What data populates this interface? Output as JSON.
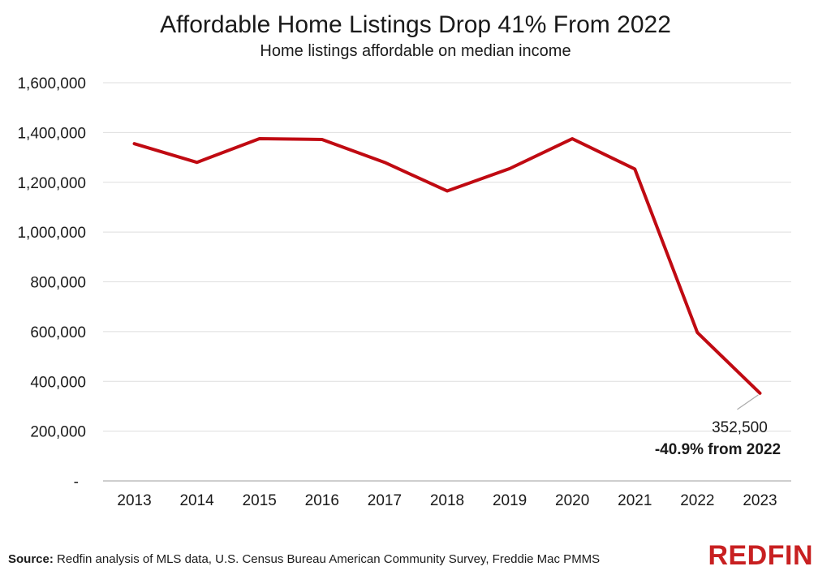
{
  "header": {
    "title": "Affordable Home Listings Drop 41% From 2022",
    "subtitle": "Home listings affordable on median income"
  },
  "annotation": {
    "value_label": "352,500",
    "change_label": "-40.9% from 2022"
  },
  "footer": {
    "source_label": "Source:",
    "source_text": "Redfin analysis of MLS data, U.S. Census Bureau American Community Survey, Freddie Mac PMMS"
  },
  "brand": {
    "logo_text": "REDFIN",
    "accent_color": "#c00a12"
  },
  "chart_data": {
    "type": "line",
    "title": "Affordable Home Listings Drop 41% From 2022",
    "subtitle": "Home listings affordable on median income",
    "xlabel": "",
    "ylabel": "",
    "categories": [
      "2013",
      "2014",
      "2015",
      "2016",
      "2017",
      "2018",
      "2019",
      "2020",
      "2021",
      "2022",
      "2023"
    ],
    "series": [
      {
        "values": [
          1355000,
          1280000,
          1375000,
          1372000,
          1280000,
          1165000,
          1255000,
          1375000,
          1253000,
          596000,
          352500
        ],
        "color": "#c00a12"
      }
    ],
    "ylim": [
      0,
      1600000
    ],
    "yticks": [
      0,
      200000,
      400000,
      600000,
      800000,
      1000000,
      1200000,
      1400000,
      1600000
    ],
    "ytick_labels": [
      "-",
      "200,000",
      "400,000",
      "600,000",
      "800,000",
      "1,000,000",
      "1,200,000",
      "1,400,000",
      "1,600,000"
    ],
    "grid": true,
    "legend": "none"
  }
}
